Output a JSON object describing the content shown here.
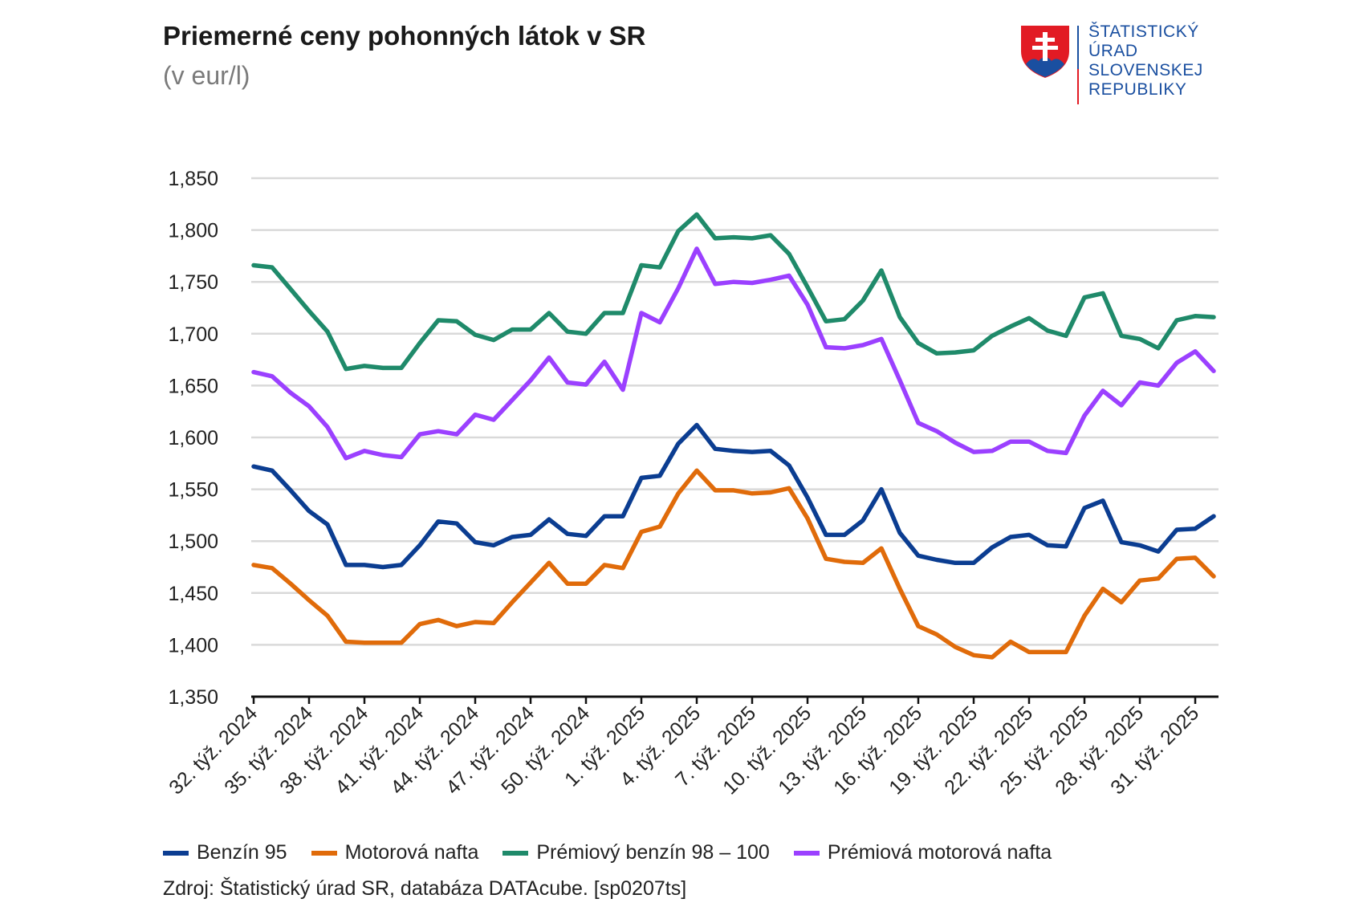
{
  "header": {
    "title": "Priemerné ceny pohonných látok v SR",
    "subtitle": "(v eur/l)"
  },
  "logo": {
    "org_lines": [
      "ŠTATISTICKÝ",
      "ÚRAD",
      "SLOVENSKEJ",
      "REPUBLIKY"
    ],
    "colors": {
      "blue": "#1a4fa0",
      "red": "#e21b24"
    }
  },
  "source": "Zdroj: Štatistický úrad SR, databáza DATAcube. [sp0207ts]",
  "chart_data": {
    "type": "line",
    "title": "Priemerné ceny pohonných látok v SR",
    "subtitle": "(v eur/l)",
    "xlabel": "",
    "ylabel": "",
    "ylim": [
      1.35,
      1.85
    ],
    "yticks": [
      "1,350",
      "1,400",
      "1,450",
      "1,500",
      "1,550",
      "1,600",
      "1,650",
      "1,700",
      "1,750",
      "1,800",
      "1,850"
    ],
    "ytick_values": [
      1.35,
      1.4,
      1.45,
      1.5,
      1.55,
      1.6,
      1.65,
      1.7,
      1.75,
      1.8,
      1.85
    ],
    "grid": true,
    "legend_position": "bottom",
    "categories": [
      "32. týž. 2024",
      "33. týž. 2024",
      "34. týž. 2024",
      "35. týž. 2024",
      "36. týž. 2024",
      "37. týž. 2024",
      "38. týž. 2024",
      "39. týž. 2024",
      "40. týž. 2024",
      "41. týž. 2024",
      "42. týž. 2024",
      "43. týž. 2024",
      "44. týž. 2024",
      "45. týž. 2024",
      "46. týž. 2024",
      "47. týž. 2024",
      "48. týž. 2024",
      "49. týž. 2024",
      "50. týž. 2024",
      "51. týž. 2024",
      "52. týž. 2024",
      "1. týž. 2025",
      "2. týž. 2025",
      "3. týž. 2025",
      "4. týž. 2025",
      "5. týž. 2025",
      "6. týž. 2025",
      "7. týž. 2025",
      "8. týž. 2025",
      "9. týž. 2025",
      "10. týž. 2025",
      "11. týž. 2025",
      "12. týž. 2025",
      "13. týž. 2025",
      "14. týž. 2025",
      "15. týž. 2025",
      "16. týž. 2025",
      "17. týž. 2025",
      "18. týž. 2025",
      "19. týž. 2025",
      "20. týž. 2025",
      "21. týž. 2025",
      "22. týž. 2025",
      "23. týž. 2025",
      "24. týž. 2025",
      "25. týž. 2025",
      "26. týž. 2025",
      "27. týž. 2025",
      "28. týž. 2025",
      "29. týž. 2025",
      "30. týž. 2025",
      "31. týž. 2025",
      "32. týž. 2025"
    ],
    "xtick_labels": [
      {
        "index": 0,
        "label": "32. týž. 2024"
      },
      {
        "index": 3,
        "label": "35. týž. 2024"
      },
      {
        "index": 6,
        "label": "38. týž. 2024"
      },
      {
        "index": 9,
        "label": "41. týž. 2024"
      },
      {
        "index": 12,
        "label": "44. týž. 2024"
      },
      {
        "index": 15,
        "label": "47. týž. 2024"
      },
      {
        "index": 18,
        "label": "50. týž. 2024"
      },
      {
        "index": 21,
        "label": "1. týž. 2025"
      },
      {
        "index": 24,
        "label": "4. týž. 2025"
      },
      {
        "index": 27,
        "label": "7. týž. 2025"
      },
      {
        "index": 30,
        "label": "10. týž. 2025"
      },
      {
        "index": 33,
        "label": "13. týž. 2025"
      },
      {
        "index": 36,
        "label": "16. týž. 2025"
      },
      {
        "index": 39,
        "label": "19. týž. 2025"
      },
      {
        "index": 42,
        "label": "22. týž. 2025"
      },
      {
        "index": 45,
        "label": "25. týž. 2025"
      },
      {
        "index": 48,
        "label": "28. týž. 2025"
      },
      {
        "index": 51,
        "label": "31. týž. 2025"
      }
    ],
    "series": [
      {
        "name": "Benzín 95",
        "color": "#0b3d91",
        "values": [
          1.572,
          1.568,
          1.549,
          1.529,
          1.516,
          1.477,
          1.477,
          1.475,
          1.477,
          1.496,
          1.519,
          1.517,
          1.499,
          1.496,
          1.504,
          1.506,
          1.521,
          1.507,
          1.505,
          1.524,
          1.524,
          1.561,
          1.563,
          1.594,
          1.612,
          1.589,
          1.587,
          1.586,
          1.587,
          1.573,
          1.542,
          1.506,
          1.506,
          1.52,
          1.55,
          1.508,
          1.486,
          1.482,
          1.479,
          1.479,
          1.494,
          1.504,
          1.506,
          1.496,
          1.495,
          1.532,
          1.539,
          1.499,
          1.496,
          1.49,
          1.511,
          1.512,
          1.524
        ]
      },
      {
        "name": "Motorová nafta",
        "color": "#e06b0a",
        "values": [
          1.477,
          1.474,
          1.459,
          1.443,
          1.428,
          1.403,
          1.402,
          1.402,
          1.402,
          1.42,
          1.424,
          1.418,
          1.422,
          1.421,
          1.441,
          1.46,
          1.479,
          1.459,
          1.459,
          1.477,
          1.474,
          1.509,
          1.514,
          1.546,
          1.568,
          1.549,
          1.549,
          1.546,
          1.547,
          1.551,
          1.522,
          1.483,
          1.48,
          1.479,
          1.493,
          1.454,
          1.418,
          1.41,
          1.398,
          1.39,
          1.388,
          1.403,
          1.393,
          1.393,
          1.393,
          1.428,
          1.454,
          1.441,
          1.462,
          1.464,
          1.483,
          1.484,
          1.466
        ]
      },
      {
        "name": "Prémiový benzín 98 – 100",
        "color": "#1f8a6a",
        "values": [
          1.766,
          1.764,
          1.743,
          1.722,
          1.702,
          1.666,
          1.669,
          1.667,
          1.667,
          1.691,
          1.713,
          1.712,
          1.699,
          1.694,
          1.704,
          1.704,
          1.72,
          1.702,
          1.7,
          1.72,
          1.72,
          1.766,
          1.764,
          1.799,
          1.815,
          1.792,
          1.793,
          1.792,
          1.795,
          1.777,
          1.745,
          1.712,
          1.714,
          1.732,
          1.761,
          1.716,
          1.691,
          1.681,
          1.682,
          1.684,
          1.698,
          1.707,
          1.715,
          1.703,
          1.698,
          1.735,
          1.739,
          1.698,
          1.695,
          1.686,
          1.713,
          1.717,
          1.716
        ]
      },
      {
        "name": "Prémiová motorová nafta",
        "color": "#9b40ff",
        "values": [
          1.663,
          1.659,
          1.643,
          1.63,
          1.61,
          1.58,
          1.587,
          1.583,
          1.581,
          1.603,
          1.606,
          1.603,
          1.622,
          1.617,
          1.636,
          1.655,
          1.677,
          1.653,
          1.651,
          1.673,
          1.646,
          1.72,
          1.711,
          1.744,
          1.782,
          1.748,
          1.75,
          1.749,
          1.752,
          1.756,
          1.728,
          1.687,
          1.686,
          1.689,
          1.695,
          1.655,
          1.614,
          1.606,
          1.595,
          1.586,
          1.587,
          1.596,
          1.596,
          1.587,
          1.585,
          1.621,
          1.645,
          1.631,
          1.653,
          1.65,
          1.672,
          1.683,
          1.664
        ]
      }
    ]
  }
}
